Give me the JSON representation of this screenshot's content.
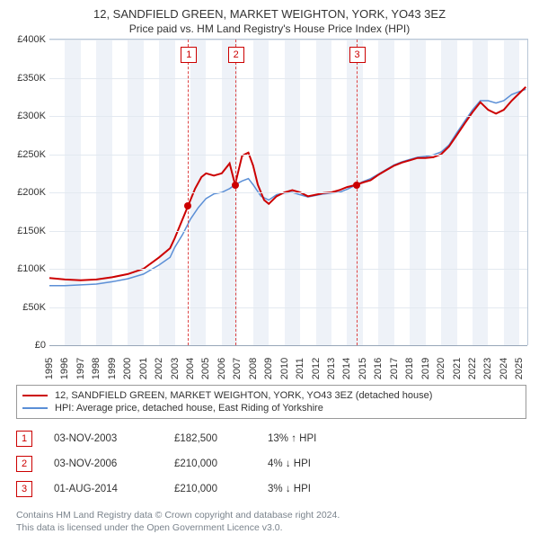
{
  "title": {
    "line1": "12, SANDFIELD GREEN, MARKET WEIGHTON, YORK, YO43 3EZ",
    "line2": "Price paid vs. HM Land Registry's House Price Index (HPI)"
  },
  "chart": {
    "type": "line",
    "xlim": [
      1995,
      2025.5
    ],
    "ylim": [
      0,
      400000
    ],
    "ytick_step": 50000,
    "xtick_step": 1,
    "yticks": [
      "£0",
      "£50K",
      "£100K",
      "£150K",
      "£200K",
      "£250K",
      "£300K",
      "£350K",
      "£400K"
    ],
    "xticks": [
      "1995",
      "1996",
      "1997",
      "1998",
      "1999",
      "2000",
      "2001",
      "2002",
      "2003",
      "2004",
      "2005",
      "2006",
      "2007",
      "2008",
      "2009",
      "2010",
      "2011",
      "2012",
      "2013",
      "2014",
      "2015",
      "2016",
      "2017",
      "2018",
      "2019",
      "2020",
      "2021",
      "2022",
      "2023",
      "2024",
      "2025"
    ],
    "grid_color": "#e3e9f0",
    "background_color": "#ffffff",
    "band_color": "#eef2f8",
    "series": {
      "property": {
        "color": "#cc0000",
        "width": 2,
        "label": "12, SANDFIELD GREEN, MARKET WEIGHTON, YORK, YO43 3EZ (detached house)",
        "points": [
          [
            1995,
            88000
          ],
          [
            1996,
            86000
          ],
          [
            1997,
            85000
          ],
          [
            1998,
            86000
          ],
          [
            1999,
            89000
          ],
          [
            2000,
            93000
          ],
          [
            2001,
            100000
          ],
          [
            2002,
            115000
          ],
          [
            2002.7,
            127000
          ],
          [
            2003,
            140000
          ],
          [
            2003.4,
            160000
          ],
          [
            2003.85,
            182500
          ],
          [
            2004.3,
            205000
          ],
          [
            2004.7,
            220000
          ],
          [
            2005,
            225000
          ],
          [
            2005.5,
            222000
          ],
          [
            2006,
            225000
          ],
          [
            2006.5,
            238000
          ],
          [
            2006.85,
            210000
          ],
          [
            2007.3,
            248000
          ],
          [
            2007.7,
            252000
          ],
          [
            2008,
            235000
          ],
          [
            2008.3,
            210000
          ],
          [
            2008.7,
            190000
          ],
          [
            2009,
            185000
          ],
          [
            2009.5,
            195000
          ],
          [
            2010,
            200000
          ],
          [
            2010.5,
            203000
          ],
          [
            2011,
            200000
          ],
          [
            2011.5,
            195000
          ],
          [
            2012,
            197000
          ],
          [
            2012.5,
            199000
          ],
          [
            2013,
            200000
          ],
          [
            2013.5,
            203000
          ],
          [
            2014,
            207000
          ],
          [
            2014.6,
            210000
          ],
          [
            2015,
            213000
          ],
          [
            2015.5,
            216000
          ],
          [
            2016,
            223000
          ],
          [
            2016.5,
            229000
          ],
          [
            2017,
            235000
          ],
          [
            2017.5,
            239000
          ],
          [
            2018,
            242000
          ],
          [
            2018.5,
            245000
          ],
          [
            2019,
            245000
          ],
          [
            2019.5,
            246000
          ],
          [
            2020,
            250000
          ],
          [
            2020.5,
            260000
          ],
          [
            2021,
            275000
          ],
          [
            2021.5,
            290000
          ],
          [
            2022,
            305000
          ],
          [
            2022.5,
            318000
          ],
          [
            2023,
            308000
          ],
          [
            2023.5,
            303000
          ],
          [
            2024,
            308000
          ],
          [
            2024.5,
            320000
          ],
          [
            2025,
            330000
          ],
          [
            2025.4,
            338000
          ]
        ]
      },
      "hpi": {
        "color": "#5b8fd6",
        "width": 1.5,
        "label": "HPI: Average price, detached house, East Riding of Yorkshire",
        "points": [
          [
            1995,
            78000
          ],
          [
            1996,
            78000
          ],
          [
            1997,
            79000
          ],
          [
            1998,
            80000
          ],
          [
            1999,
            83000
          ],
          [
            2000,
            87000
          ],
          [
            2001,
            93000
          ],
          [
            2002,
            105000
          ],
          [
            2002.7,
            115000
          ],
          [
            2003,
            128000
          ],
          [
            2003.5,
            145000
          ],
          [
            2004,
            165000
          ],
          [
            2004.5,
            180000
          ],
          [
            2005,
            192000
          ],
          [
            2005.5,
            198000
          ],
          [
            2006,
            200000
          ],
          [
            2006.5,
            205000
          ],
          [
            2006.85,
            210000
          ],
          [
            2007.3,
            215000
          ],
          [
            2007.7,
            218000
          ],
          [
            2008,
            210000
          ],
          [
            2008.5,
            195000
          ],
          [
            2009,
            190000
          ],
          [
            2009.5,
            197000
          ],
          [
            2010,
            199000
          ],
          [
            2010.5,
            200000
          ],
          [
            2011,
            197000
          ],
          [
            2011.5,
            194000
          ],
          [
            2012,
            196000
          ],
          [
            2012.5,
            198000
          ],
          [
            2013,
            199000
          ],
          [
            2013.5,
            200000
          ],
          [
            2014,
            204000
          ],
          [
            2014.6,
            210000
          ],
          [
            2015,
            214000
          ],
          [
            2015.5,
            218000
          ],
          [
            2016,
            224000
          ],
          [
            2016.5,
            230000
          ],
          [
            2017,
            236000
          ],
          [
            2017.5,
            240000
          ],
          [
            2018,
            243000
          ],
          [
            2018.5,
            246000
          ],
          [
            2019,
            247000
          ],
          [
            2019.5,
            249000
          ],
          [
            2020,
            253000
          ],
          [
            2020.5,
            262000
          ],
          [
            2021,
            278000
          ],
          [
            2021.5,
            293000
          ],
          [
            2022,
            308000
          ],
          [
            2022.5,
            320000
          ],
          [
            2023,
            320000
          ],
          [
            2023.5,
            317000
          ],
          [
            2024,
            320000
          ],
          [
            2024.5,
            328000
          ],
          [
            2025,
            332000
          ],
          [
            2025.4,
            335000
          ]
        ]
      }
    },
    "markers": [
      {
        "num": "1",
        "x": 2003.85,
        "y": 182500,
        "dot_color": "#cc0000"
      },
      {
        "num": "2",
        "x": 2006.85,
        "y": 210000,
        "dot_color": "#cc0000"
      },
      {
        "num": "3",
        "x": 2014.58,
        "y": 210000,
        "dot_color": "#cc0000"
      }
    ]
  },
  "legend": [
    {
      "color": "#cc0000",
      "text_key": "chart.series.property.label"
    },
    {
      "color": "#5b8fd6",
      "text_key": "chart.series.hpi.label"
    }
  ],
  "events": [
    {
      "num": "1",
      "date": "03-NOV-2003",
      "price": "£182,500",
      "pct": "13% ↑ HPI"
    },
    {
      "num": "2",
      "date": "03-NOV-2006",
      "price": "£210,000",
      "pct": "4% ↓ HPI"
    },
    {
      "num": "3",
      "date": "01-AUG-2014",
      "price": "£210,000",
      "pct": "3% ↓ HPI"
    }
  ],
  "footer": {
    "line1": "Contains HM Land Registry data © Crown copyright and database right 2024.",
    "line2": "This data is licensed under the Open Government Licence v3.0."
  }
}
